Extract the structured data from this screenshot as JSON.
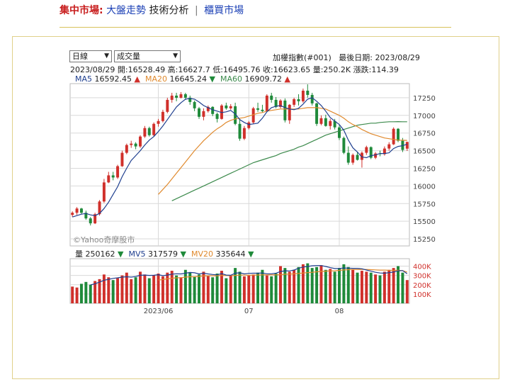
{
  "nav": {
    "lead": "集中市場:",
    "items": [
      "大盤走勢",
      "技術分析",
      "櫃買市場"
    ],
    "separator": "|",
    "active": "技術分析"
  },
  "controls": {
    "period": "日線",
    "indicator": "成交量"
  },
  "info": {
    "index_name": "加權指數(#001)",
    "last_date": "最後日期: 2023/08/29",
    "date": "2023/08/29",
    "open": "開:16528.49",
    "high": "高:16627.7",
    "low": "低:16495.76",
    "close": "收:16623.65",
    "volume": "量:250.2K",
    "change": "漲跌:114.39"
  },
  "ma_legend": [
    {
      "label": "MA5",
      "value": "16592.45",
      "dir": "▲",
      "color": "#1f3f8f"
    },
    {
      "label": "MA20",
      "value": "16645.24",
      "dir": "▼",
      "color": "#e08a2e"
    },
    {
      "label": "MA60",
      "value": "16909.72",
      "dir": "▲",
      "color": "#3c8a4c"
    }
  ],
  "vol_legend": [
    {
      "label": "量",
      "value": "250162",
      "dir": "▼",
      "color": "#222222"
    },
    {
      "label": "MV5",
      "value": "317579",
      "dir": "▼",
      "color": "#1f3f8f"
    },
    {
      "label": "MV20",
      "value": "335644",
      "dir": "▼",
      "color": "#e08a2e"
    }
  ],
  "watermark": "©Yahoo奇摩股市",
  "colors": {
    "up": "#d0302b",
    "down": "#1f8a3a",
    "grid": "#d9d9d9"
  },
  "chart_data": {
    "type": "candlestick+line+bar",
    "price_axis": {
      "ticks": [
        15250,
        15500,
        15750,
        16000,
        16250,
        16500,
        16750,
        17000,
        17250
      ],
      "ylim": [
        15150,
        17450
      ]
    },
    "volume_axis": {
      "ticks": [
        "100K",
        "200K",
        "300K",
        "400K"
      ],
      "ylim": [
        0,
        480000
      ]
    },
    "x_labels": [
      {
        "label": "2023/06",
        "index": 19
      },
      {
        "label": "07",
        "index": 39
      },
      {
        "label": "08",
        "index": 59
      }
    ],
    "candles": [
      [
        15590,
        15640,
        15560,
        15620
      ],
      [
        15620,
        15700,
        15590,
        15680
      ],
      [
        15680,
        15690,
        15600,
        15620
      ],
      [
        15620,
        15650,
        15520,
        15540
      ],
      [
        15540,
        15560,
        15440,
        15470
      ],
      [
        15470,
        15620,
        15460,
        15600
      ],
      [
        15600,
        15800,
        15580,
        15780
      ],
      [
        15780,
        16100,
        15760,
        16050
      ],
      [
        16050,
        16200,
        16040,
        16150
      ],
      [
        16150,
        16200,
        16080,
        16120
      ],
      [
        16120,
        16300,
        16100,
        16280
      ],
      [
        16280,
        16500,
        16270,
        16470
      ],
      [
        16470,
        16600,
        16450,
        16580
      ],
      [
        16580,
        16640,
        16540,
        16600
      ],
      [
        16600,
        16620,
        16520,
        16560
      ],
      [
        16560,
        16720,
        16540,
        16700
      ],
      [
        16700,
        16850,
        16680,
        16820
      ],
      [
        16820,
        16840,
        16700,
        16720
      ],
      [
        16720,
        16900,
        16700,
        16880
      ],
      [
        16880,
        16950,
        16840,
        16920
      ],
      [
        16920,
        17080,
        16900,
        17050
      ],
      [
        17050,
        17250,
        17030,
        17220
      ],
      [
        17220,
        17320,
        17180,
        17280
      ],
      [
        17280,
        17320,
        17200,
        17250
      ],
      [
        17250,
        17330,
        17240,
        17300
      ],
      [
        17300,
        17320,
        17220,
        17250
      ],
      [
        17250,
        17280,
        17150,
        17190
      ],
      [
        17190,
        17210,
        17060,
        17100
      ],
      [
        17100,
        17120,
        16950,
        16980
      ],
      [
        16980,
        17100,
        16930,
        17060
      ],
      [
        17060,
        17140,
        17040,
        17120
      ],
      [
        17120,
        17130,
        16990,
        17020
      ],
      [
        17020,
        17040,
        16900,
        16950
      ],
      [
        16950,
        17160,
        16940,
        17140
      ],
      [
        17140,
        17180,
        17080,
        17100
      ],
      [
        17100,
        17160,
        17080,
        17130
      ],
      [
        17130,
        17180,
        16860,
        16880
      ],
      [
        16880,
        16950,
        16640,
        16670
      ],
      [
        16670,
        16850,
        16650,
        16820
      ],
      [
        16820,
        16920,
        16800,
        16900
      ],
      [
        16900,
        17120,
        16880,
        17100
      ],
      [
        17100,
        17180,
        17050,
        17080
      ],
      [
        17080,
        17150,
        17040,
        17060
      ],
      [
        17060,
        17300,
        17050,
        17280
      ],
      [
        17280,
        17320,
        17180,
        17220
      ],
      [
        17220,
        17260,
        17100,
        17120
      ],
      [
        17120,
        17230,
        17100,
        17210
      ],
      [
        17210,
        17240,
        16900,
        16930
      ],
      [
        16930,
        17160,
        16880,
        17150
      ],
      [
        17150,
        17250,
        17120,
        17230
      ],
      [
        17230,
        17300,
        17140,
        17200
      ],
      [
        17200,
        17380,
        17180,
        17350
      ],
      [
        17350,
        17440,
        17250,
        17290
      ],
      [
        17290,
        17320,
        17140,
        17170
      ],
      [
        17170,
        17180,
        16850,
        16880
      ],
      [
        16880,
        17000,
        16860,
        16960
      ],
      [
        16960,
        17010,
        16840,
        16850
      ],
      [
        16850,
        16950,
        16800,
        16920
      ],
      [
        16920,
        16950,
        16800,
        16830
      ],
      [
        16830,
        16860,
        16650,
        16680
      ],
      [
        16680,
        16700,
        16450,
        16470
      ],
      [
        16470,
        16560,
        16300,
        16330
      ],
      [
        16330,
        16460,
        16300,
        16440
      ],
      [
        16440,
        16480,
        16360,
        16370
      ],
      [
        16370,
        16490,
        16260,
        16470
      ],
      [
        16470,
        16570,
        16440,
        16550
      ],
      [
        16550,
        16560,
        16380,
        16400
      ],
      [
        16400,
        16480,
        16380,
        16460
      ],
      [
        16460,
        16500,
        16420,
        16450
      ],
      [
        16450,
        16560,
        16430,
        16530
      ],
      [
        16530,
        16620,
        16500,
        16590
      ],
      [
        16590,
        16830,
        16580,
        16810
      ],
      [
        16810,
        16820,
        16620,
        16640
      ],
      [
        16640,
        16680,
        16480,
        16510
      ],
      [
        16528.49,
        16627.7,
        16495.76,
        16623.65
      ]
    ],
    "ma5": [
      15560,
      15580,
      15600,
      15610,
      15590,
      15580,
      15610,
      15680,
      15770,
      15880,
      15990,
      16130,
      16250,
      16360,
      16430,
      16500,
      16580,
      16650,
      16700,
      16770,
      16850,
      16940,
      17030,
      17120,
      17180,
      17230,
      17240,
      17230,
      17190,
      17140,
      17110,
      17080,
      17060,
      17040,
      17050,
      17070,
      17020,
      16940,
      16900,
      16870,
      16880,
      16890,
      16960,
      17050,
      17110,
      17130,
      17140,
      17110,
      17090,
      17080,
      17100,
      17160,
      17230,
      17250,
      17200,
      17140,
      17060,
      16970,
      16920,
      16870,
      16790,
      16650,
      16540,
      16480,
      16410,
      16400,
      16430,
      16440,
      16460,
      16460,
      16470,
      16530,
      16560,
      16570,
      16592.45
    ],
    "ma20": [
      null,
      null,
      null,
      null,
      null,
      null,
      null,
      null,
      null,
      null,
      null,
      null,
      null,
      null,
      null,
      null,
      null,
      null,
      null,
      15880,
      15950,
      16020,
      16100,
      16180,
      16260,
      16340,
      16420,
      16500,
      16570,
      16640,
      16700,
      16760,
      16810,
      16850,
      16900,
      16930,
      16950,
      16960,
      16970,
      16990,
      17010,
      17030,
      17040,
      17060,
      17070,
      17080,
      17090,
      17090,
      17090,
      17090,
      17090,
      17100,
      17110,
      17110,
      17110,
      17100,
      17090,
      17060,
      17030,
      17000,
      16960,
      16910,
      16870,
      16840,
      16800,
      16770,
      16740,
      16720,
      16700,
      16680,
      16670,
      16660,
      16650,
      16648,
      16645.24
    ],
    "ma60": [
      null,
      null,
      null,
      null,
      null,
      null,
      null,
      null,
      null,
      null,
      null,
      null,
      null,
      null,
      null,
      null,
      null,
      null,
      null,
      null,
      null,
      null,
      15790,
      15820,
      15850,
      15880,
      15910,
      15940,
      15970,
      16000,
      16030,
      16060,
      16090,
      16120,
      16150,
      16180,
      16210,
      16240,
      16270,
      16300,
      16330,
      16350,
      16370,
      16390,
      16410,
      16430,
      16460,
      16480,
      16500,
      16520,
      16550,
      16570,
      16600,
      16630,
      16660,
      16690,
      16720,
      16740,
      16760,
      16780,
      16800,
      16820,
      16840,
      16860,
      16870,
      16880,
      16890,
      16890,
      16900,
      16905,
      16910,
      16910,
      16912,
      16910,
      16909.72
    ],
    "volume": [
      180,
      170,
      210,
      230,
      200,
      240,
      260,
      310,
      280,
      250,
      270,
      300,
      330,
      260,
      280,
      340,
      310,
      270,
      300,
      320,
      290,
      330,
      350,
      300,
      280,
      360,
      330,
      290,
      310,
      340,
      300,
      280,
      320,
      350,
      270,
      300,
      380,
      340,
      290,
      300,
      310,
      330,
      360,
      300,
      290,
      320,
      400,
      380,
      340,
      360,
      390,
      420,
      430,
      380,
      390,
      410,
      360,
      370,
      340,
      380,
      420,
      390,
      360,
      330,
      350,
      340,
      330,
      310,
      300,
      340,
      360,
      380,
      400,
      330,
      250
    ],
    "mv5": [
      null,
      null,
      null,
      null,
      198,
      210,
      228,
      248,
      258,
      268,
      274,
      282,
      286,
      282,
      288,
      302,
      304,
      300,
      302,
      308,
      298,
      304,
      314,
      318,
      316,
      324,
      332,
      328,
      316,
      324,
      316,
      310,
      306,
      320,
      304,
      302,
      324,
      328,
      316,
      322,
      324,
      324,
      326,
      318,
      318,
      324,
      342,
      350,
      348,
      358,
      378,
      390,
      396,
      404,
      406,
      406,
      396,
      384,
      374,
      374,
      380,
      378,
      376,
      376,
      372,
      358,
      346,
      334,
      326,
      324,
      330,
      336,
      350,
      352,
      317.579
    ],
    "mv20": [
      null,
      null,
      null,
      null,
      null,
      null,
      null,
      null,
      null,
      null,
      null,
      null,
      null,
      null,
      null,
      null,
      null,
      null,
      null,
      250,
      256,
      264,
      270,
      274,
      276,
      282,
      286,
      286,
      290,
      294,
      296,
      296,
      296,
      300,
      299,
      297,
      300,
      303,
      303,
      302,
      303,
      305,
      306,
      306,
      307,
      306,
      308,
      313,
      314,
      317,
      321,
      326,
      330,
      334,
      339,
      343,
      346,
      349,
      350,
      354,
      359,
      362,
      364,
      363,
      365,
      364,
      362,
      360,
      357,
      357,
      356,
      354,
      355,
      352,
      335.644
    ]
  }
}
